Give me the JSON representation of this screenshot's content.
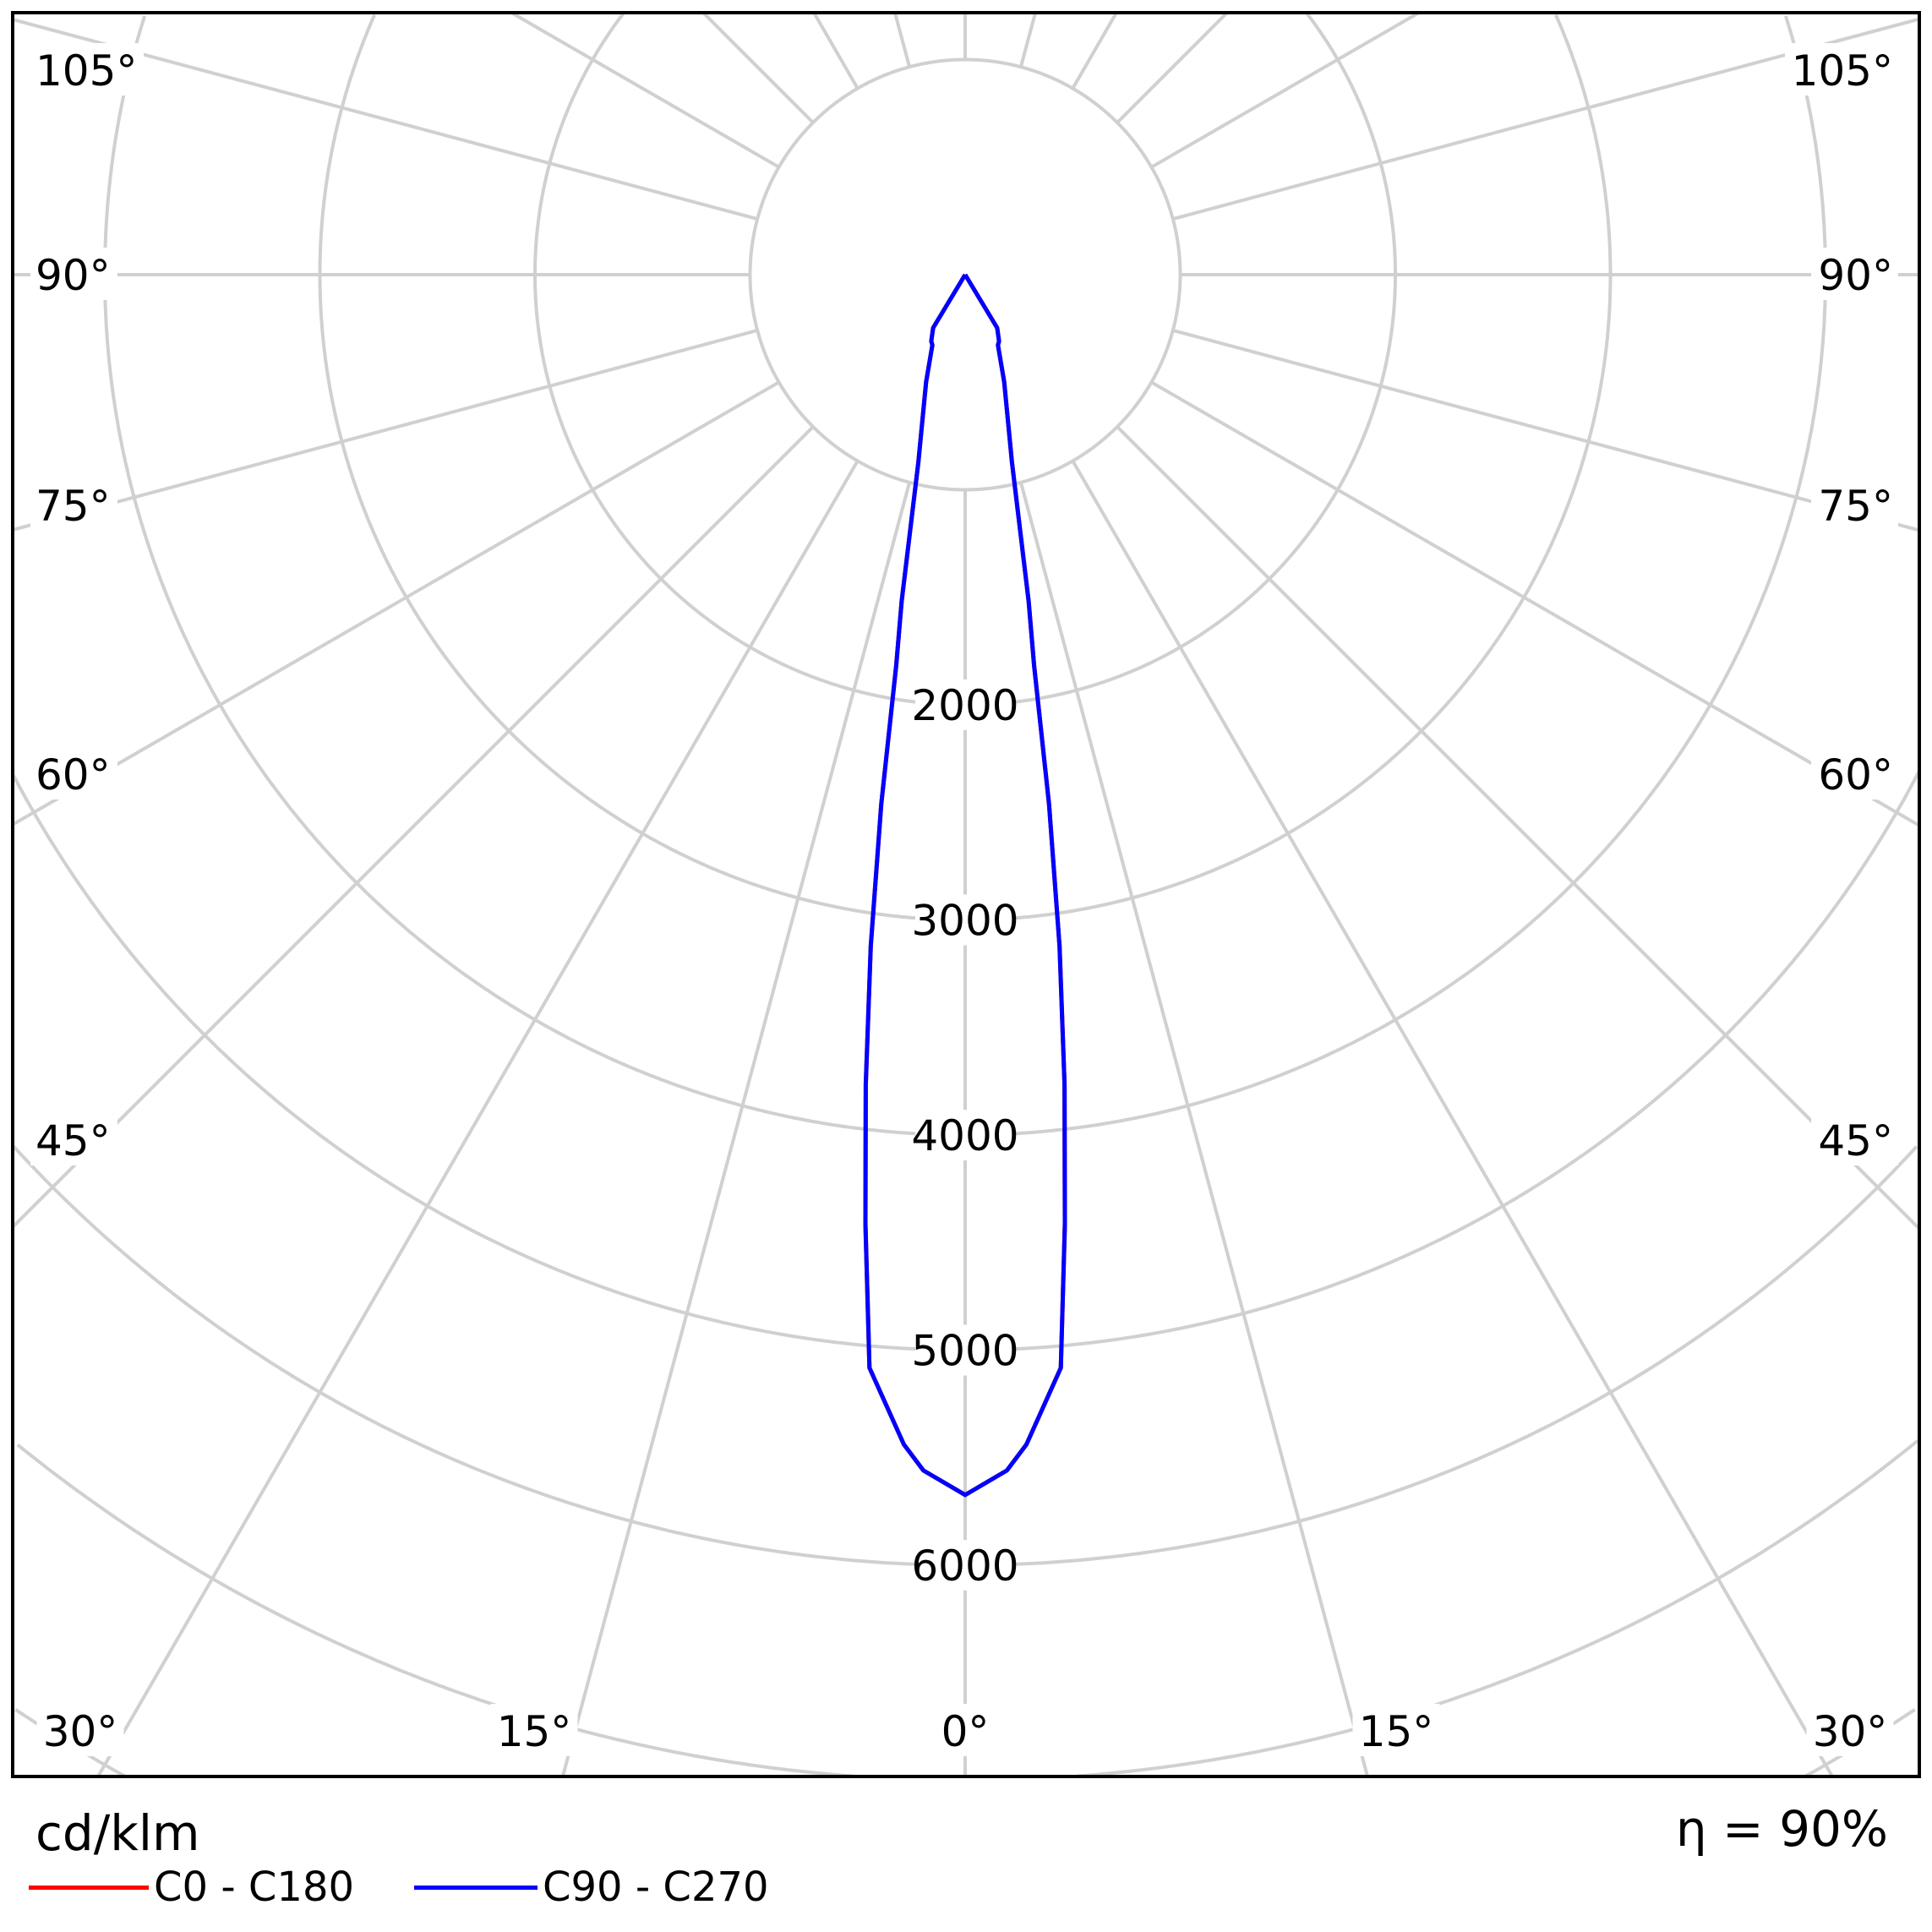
{
  "chart_data": {
    "type": "polar",
    "unit": "cd/klm",
    "efficiency": "η = 90%",
    "radial_ticks": [
      2000,
      3000,
      4000,
      5000,
      6000
    ],
    "radial_grid_step": 1000,
    "angle_ticks": [
      "0°",
      "15°",
      "30°",
      "45°",
      "60°",
      "75°",
      "90°",
      "105°"
    ],
    "angle_values": [
      0,
      15,
      30,
      45,
      60,
      75,
      90,
      105
    ],
    "grid": true,
    "colors": {
      "grid": "#d0d0d0",
      "frame": "#000000"
    },
    "series": [
      {
        "name": "C0 - C180",
        "color": "#ff0000",
        "angles": [
          0,
          2,
          3,
          5,
          6,
          7,
          8,
          9,
          10,
          11,
          14,
          20,
          25,
          27,
          31,
          35
        ],
        "values": [
          5673,
          5563,
          5446,
          5102,
          4437,
          3793,
          3153,
          2494,
          1846,
          1546,
          900,
          531,
          361,
          347,
          289,
          0
        ]
      },
      {
        "name": "C90 - C270",
        "color": "#0000ff",
        "angles": [
          0,
          2,
          3,
          5,
          6,
          7,
          8,
          9,
          10,
          11,
          14,
          20,
          25,
          27,
          31,
          35
        ],
        "values": [
          5673,
          5563,
          5446,
          5102,
          4437,
          3793,
          3153,
          2494,
          1846,
          1546,
          900,
          531,
          361,
          347,
          289,
          0
        ]
      }
    ]
  }
}
